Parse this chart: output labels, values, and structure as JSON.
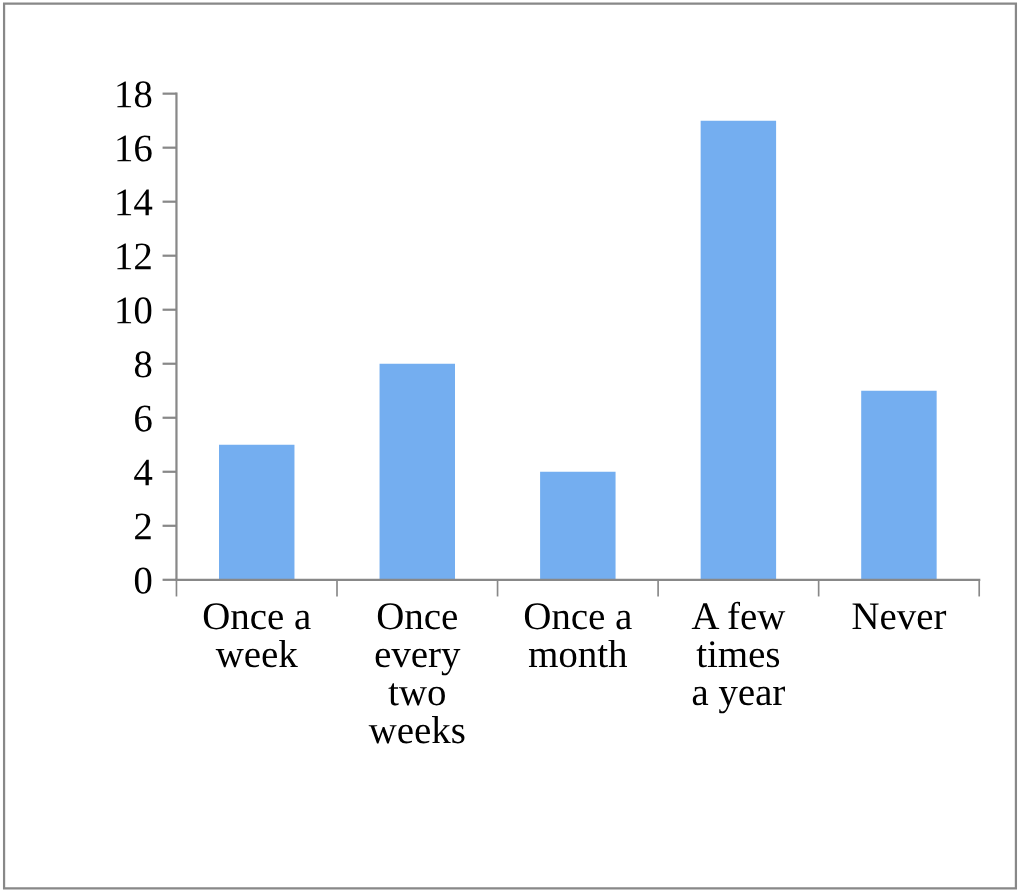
{
  "chart_data": {
    "type": "bar",
    "categories": [
      "Once a\nweek",
      "Once\nevery\ntwo\nweeks",
      "Once a\nmonth",
      "A few\ntimes\na year",
      "Never"
    ],
    "values": [
      5,
      8,
      4,
      17,
      7
    ],
    "color": "#74aef0",
    "ylim": [
      0,
      18
    ],
    "yticks": [
      0,
      2,
      4,
      6,
      8,
      10,
      12,
      14,
      16,
      18
    ],
    "grid": false,
    "legend": false
  }
}
